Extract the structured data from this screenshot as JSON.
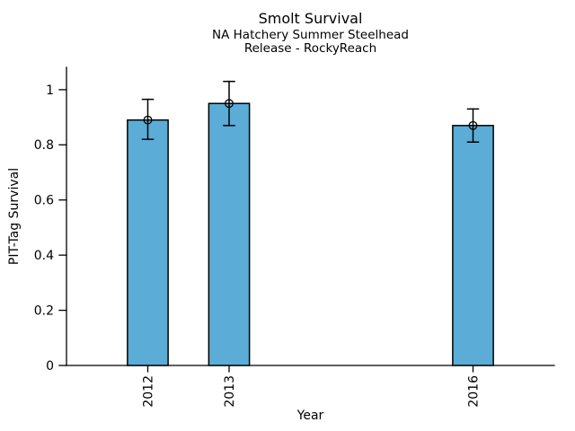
{
  "chart_data": {
    "type": "bar",
    "title": "Smolt Survival",
    "subtitle1": "NA Hatchery Summer Steelhead",
    "subtitle2": "Release - RockyReach",
    "xlabel": "Year",
    "ylabel": "PIT-Tag Survival",
    "categories": [
      "2012",
      "2013",
      "2016"
    ],
    "x": [
      2012,
      2013,
      2016
    ],
    "values": [
      0.89,
      0.95,
      0.87
    ],
    "error_low": [
      0.82,
      0.87,
      0.81
    ],
    "error_high": [
      0.965,
      1.03,
      0.93
    ],
    "bar_width_years": 0.5,
    "xlim": [
      2011,
      2017
    ],
    "ylim": [
      0,
      1.081
    ],
    "y_ticks": [
      0,
      0.2,
      0.4,
      0.6,
      0.8,
      1
    ],
    "y_tick_labels": [
      "0",
      "0.2",
      "0.4",
      "0.6",
      "0.8",
      "1"
    ],
    "x_tick_rotation": -90,
    "grid": false,
    "legend": false,
    "marker": "open-circle",
    "colors": {
      "bar_fill": "#5BACD6",
      "bar_edge": "#000000",
      "error_bar": "#000000",
      "axis": "#000000",
      "text": "#000000",
      "background": "#ffffff"
    }
  }
}
